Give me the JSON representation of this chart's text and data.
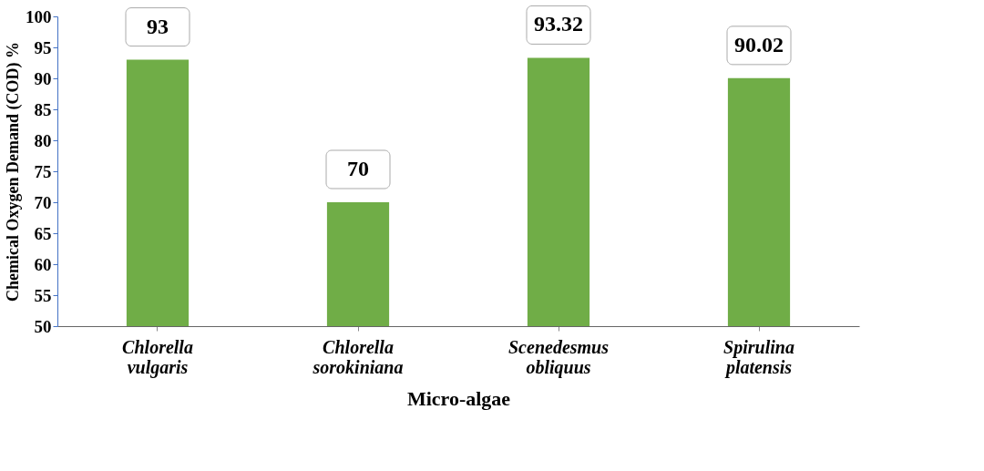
{
  "chart_data": {
    "type": "bar",
    "categories": [
      "Chlorella vulgaris",
      "Chlorella sorokiniana",
      "Scenedesmus obliquus",
      "Spirulina platensis"
    ],
    "values": [
      93,
      70,
      93.32,
      90.02
    ],
    "color": "#70ad47",
    "xlabel": "Micro-algae",
    "ylabel": "Chemical Oxygen Demand (COD) %",
    "ylim": [
      50,
      100
    ],
    "yticks": [
      50,
      55,
      60,
      65,
      70,
      75,
      80,
      85,
      90,
      95,
      100
    ],
    "data_labels": true,
    "grid": false
  }
}
